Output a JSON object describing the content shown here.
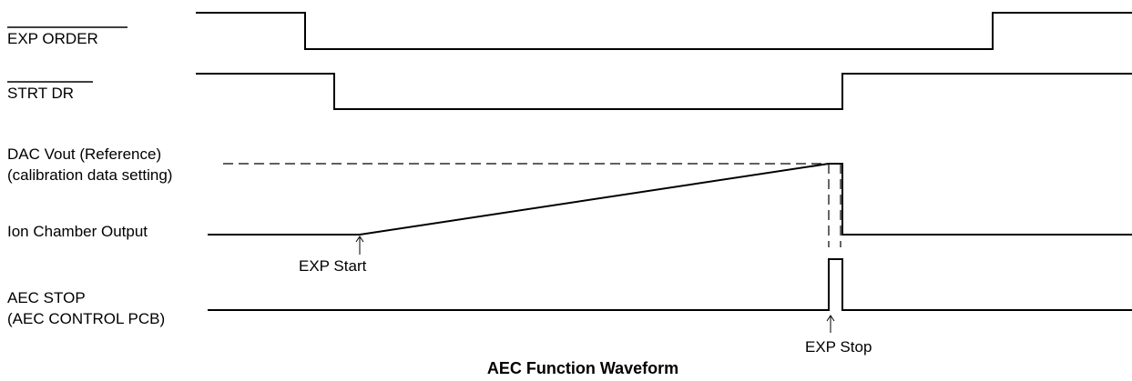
{
  "signals": {
    "exp_order": "EXP ORDER",
    "strt_dr": "STRT DR",
    "dac_vout_line1": "DAC Vout  (Reference)",
    "dac_vout_line2": "(calibration data setting)",
    "ion_chamber": "Ion Chamber Output",
    "aec_stop_line1": "AEC STOP",
    "aec_stop_line2": "(AEC CONTROL PCB)"
  },
  "annotations": {
    "exp_start": "EXP Start",
    "exp_stop": "EXP Stop"
  },
  "caption": "AEC Function Waveform"
}
